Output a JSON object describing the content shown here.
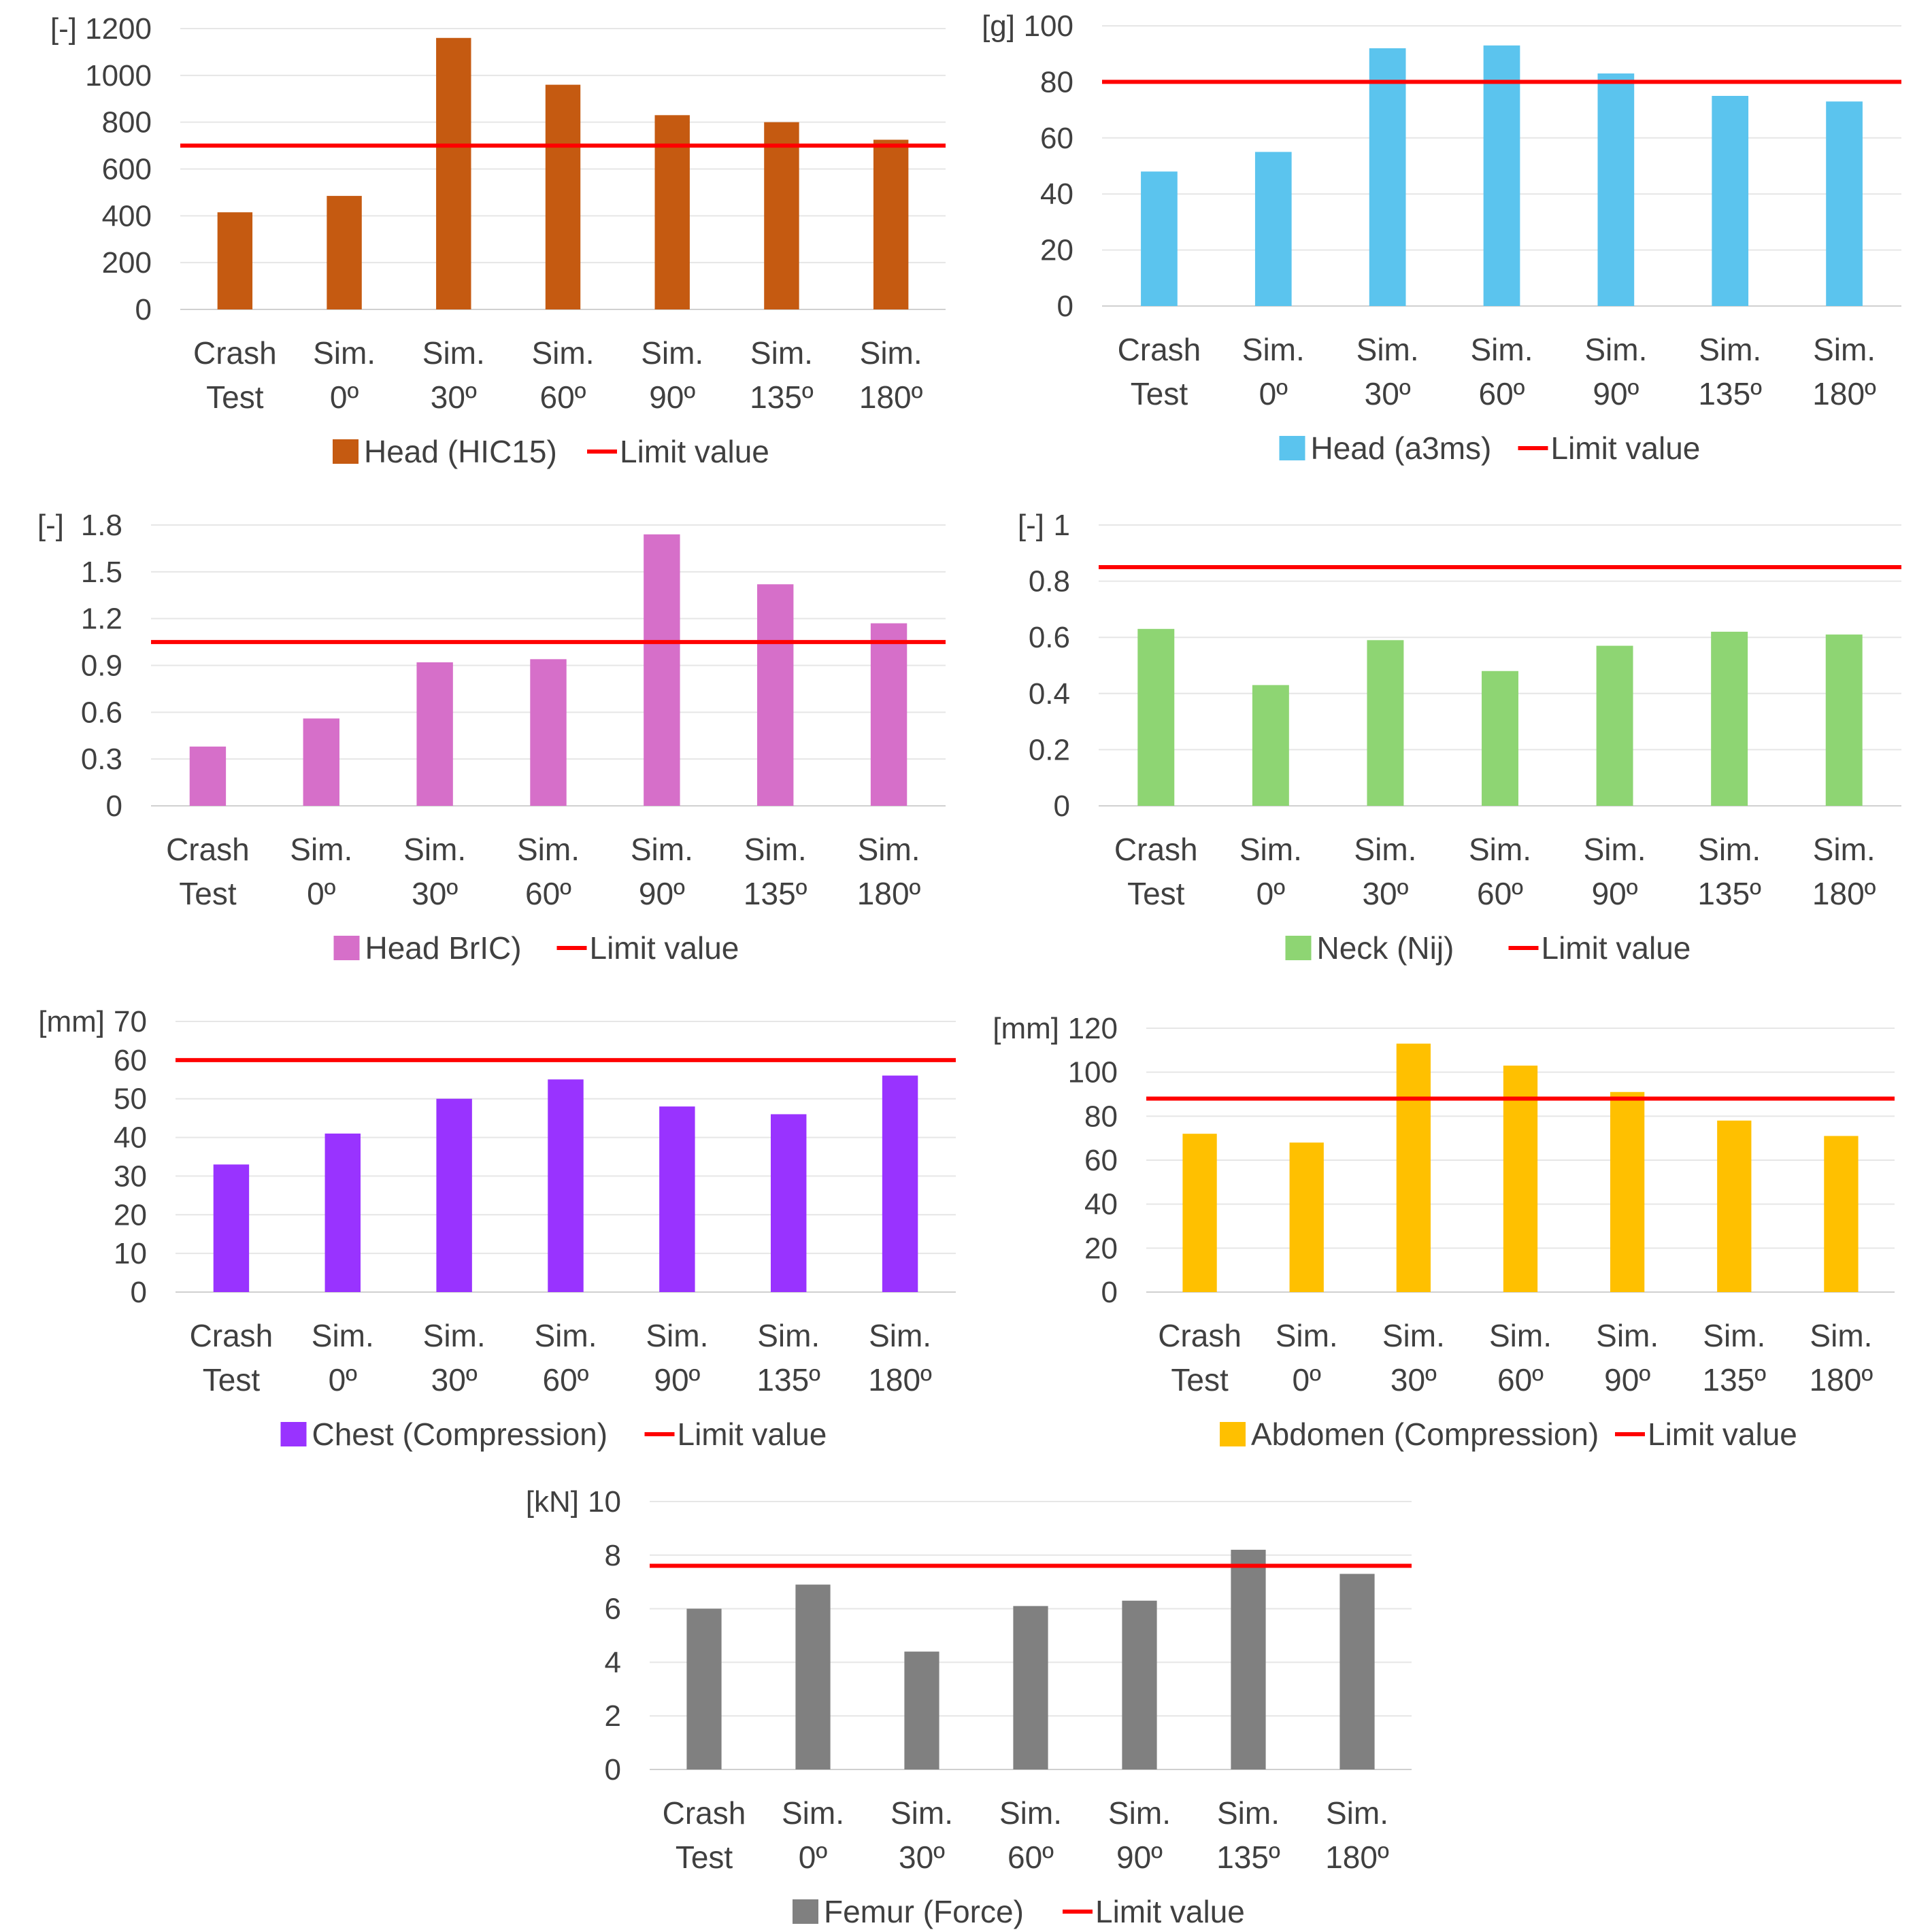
{
  "chart_data": [
    {
      "id": "hic15",
      "type": "bar",
      "unit_label": "[-]",
      "categories": [
        [
          "Crash",
          "Test"
        ],
        [
          "Sim.",
          "0º"
        ],
        [
          "Sim.",
          "30º"
        ],
        [
          "Sim.",
          "60º"
        ],
        [
          "Sim.",
          "90º"
        ],
        [
          "Sim.",
          "135º"
        ],
        [
          "Sim.",
          "180º"
        ]
      ],
      "series": [
        {
          "name": "Head (HIC15)",
          "color": "#C55A11",
          "values": [
            415,
            485,
            1160,
            960,
            830,
            800,
            725
          ]
        }
      ],
      "limit": {
        "name": "Limit value",
        "value": 700,
        "color": "#FF0000"
      },
      "ylim": [
        0,
        1200
      ],
      "yticks": [
        "0",
        "200",
        "400",
        "600",
        "800",
        "1000",
        "1200"
      ],
      "grid": true,
      "legend": "bottom"
    },
    {
      "id": "a3ms",
      "type": "bar",
      "unit_label": "[g]",
      "categories": [
        [
          "Crash",
          "Test"
        ],
        [
          "Sim.",
          "0º"
        ],
        [
          "Sim.",
          "30º"
        ],
        [
          "Sim.",
          "60º"
        ],
        [
          "Sim.",
          "90º"
        ],
        [
          "Sim.",
          "135º"
        ],
        [
          "Sim.",
          "180º"
        ]
      ],
      "series": [
        {
          "name": "Head (a3ms)",
          "color": "#5BC4EE",
          "values": [
            48,
            55,
            92,
            93,
            83,
            75,
            73
          ]
        }
      ],
      "limit": {
        "name": "Limit value",
        "value": 80,
        "color": "#FF0000"
      },
      "ylim": [
        0,
        100
      ],
      "yticks": [
        "0",
        "20",
        "40",
        "60",
        "80",
        "100"
      ],
      "grid": true,
      "legend": "bottom"
    },
    {
      "id": "bric",
      "type": "bar",
      "unit_label": "[-]",
      "categories": [
        [
          "Crash",
          "Test"
        ],
        [
          "Sim.",
          "0º"
        ],
        [
          "Sim.",
          "30º"
        ],
        [
          "Sim.",
          "60º"
        ],
        [
          "Sim.",
          "90º"
        ],
        [
          "Sim.",
          "135º"
        ],
        [
          "Sim.",
          "180º"
        ]
      ],
      "series": [
        {
          "name": "Head BrIC)",
          "color": "#D66FC9",
          "values": [
            0.38,
            0.56,
            0.92,
            0.94,
            1.74,
            1.42,
            1.17
          ]
        }
      ],
      "limit": {
        "name": "Limit value",
        "value": 1.05,
        "color": "#FF0000"
      },
      "ylim": [
        0,
        1.8
      ],
      "yticks": [
        "0",
        "0.3",
        "0.6",
        "0.9",
        "1.2",
        "1.5",
        "1.8"
      ],
      "grid": true,
      "legend": "bottom"
    },
    {
      "id": "nij",
      "type": "bar",
      "unit_label": "[-]",
      "categories": [
        [
          "Crash",
          "Test"
        ],
        [
          "Sim.",
          "0º"
        ],
        [
          "Sim.",
          "30º"
        ],
        [
          "Sim.",
          "60º"
        ],
        [
          "Sim.",
          "90º"
        ],
        [
          "Sim.",
          "135º"
        ],
        [
          "Sim.",
          "180º"
        ]
      ],
      "series": [
        {
          "name": "Neck (Nij)",
          "color": "#8ED573",
          "values": [
            0.63,
            0.43,
            0.59,
            0.48,
            0.57,
            0.62,
            0.61
          ]
        }
      ],
      "limit": {
        "name": "Limit value",
        "value": 0.85,
        "color": "#FF0000"
      },
      "ylim": [
        0,
        1
      ],
      "yticks": [
        "0",
        "0.2",
        "0.4",
        "0.6",
        "0.8",
        "1"
      ],
      "grid": true,
      "legend": "bottom"
    },
    {
      "id": "chest",
      "type": "bar",
      "unit_label": "[mm]",
      "categories": [
        [
          "Crash",
          "Test"
        ],
        [
          "Sim.",
          "0º"
        ],
        [
          "Sim.",
          "30º"
        ],
        [
          "Sim.",
          "60º"
        ],
        [
          "Sim.",
          "90º"
        ],
        [
          "Sim.",
          "135º"
        ],
        [
          "Sim.",
          "180º"
        ]
      ],
      "series": [
        {
          "name": "Chest (Compression)",
          "color": "#9933FF",
          "values": [
            33,
            41,
            50,
            55,
            48,
            46,
            56
          ]
        }
      ],
      "limit": {
        "name": "Limit value",
        "value": 60,
        "color": "#FF0000"
      },
      "ylim": [
        0,
        70
      ],
      "yticks": [
        "0",
        "10",
        "20",
        "30",
        "40",
        "50",
        "60",
        "70"
      ],
      "grid": true,
      "legend": "bottom"
    },
    {
      "id": "abdomen",
      "type": "bar",
      "unit_label": "[mm]",
      "categories": [
        [
          "Crash",
          "Test"
        ],
        [
          "Sim.",
          "0º"
        ],
        [
          "Sim.",
          "30º"
        ],
        [
          "Sim.",
          "60º"
        ],
        [
          "Sim.",
          "90º"
        ],
        [
          "Sim.",
          "135º"
        ],
        [
          "Sim.",
          "180º"
        ]
      ],
      "series": [
        {
          "name": "Abdomen (Compression)",
          "color": "#FFC000",
          "values": [
            72,
            68,
            113,
            103,
            91,
            78,
            71
          ]
        }
      ],
      "limit": {
        "name": "Limit value",
        "value": 88,
        "color": "#FF0000"
      },
      "ylim": [
        0,
        120
      ],
      "yticks": [
        "0",
        "20",
        "40",
        "60",
        "80",
        "100",
        "120"
      ],
      "grid": true,
      "legend": "bottom"
    },
    {
      "id": "femur",
      "type": "bar",
      "unit_label": "[kN]",
      "categories": [
        [
          "Crash",
          "Test"
        ],
        [
          "Sim.",
          "0º"
        ],
        [
          "Sim.",
          "30º"
        ],
        [
          "Sim.",
          "60º"
        ],
        [
          "Sim.",
          "90º"
        ],
        [
          "Sim.",
          "135º"
        ],
        [
          "Sim.",
          "180º"
        ]
      ],
      "series": [
        {
          "name": "Femur (Force)",
          "color": "#808080",
          "values": [
            6.0,
            6.9,
            4.4,
            6.1,
            6.3,
            8.2,
            7.3
          ]
        }
      ],
      "limit": {
        "name": "Limit value",
        "value": 7.6,
        "color": "#FF0000"
      },
      "ylim": [
        0,
        10
      ],
      "yticks": [
        "0",
        "2",
        "4",
        "6",
        "8",
        "10"
      ],
      "grid": true,
      "legend": "bottom"
    }
  ]
}
